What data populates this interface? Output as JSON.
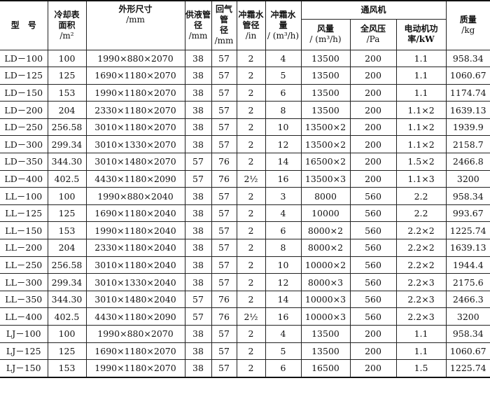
{
  "header": {
    "model": "型　号",
    "area": [
      "冷却表",
      "面积",
      "/m²"
    ],
    "dims": [
      "外形尺寸",
      "/mm"
    ],
    "supply": [
      "供液管",
      "径",
      "/mm"
    ],
    "return": [
      "回气管",
      "径",
      "/mm"
    ],
    "defrost_pipe": [
      "冲霜水",
      "管径",
      "/in"
    ],
    "defrost_flow": [
      "冲霜水",
      "量",
      "/ (m³/h)"
    ],
    "fan": "通风机",
    "fan_flow": [
      "风量",
      "/ (m³/h)"
    ],
    "fan_pressure": [
      "全风压",
      "/Pa"
    ],
    "fan_power": [
      "电动机功",
      "率/kW"
    ],
    "mass": [
      "质量",
      "/kg"
    ]
  },
  "rows": [
    [
      "LD－100",
      "100",
      "1990×880×2070",
      "38",
      "57",
      "2",
      "4",
      "13500",
      "200",
      "1.1",
      "958.34"
    ],
    [
      "LD－125",
      "125",
      "1690×1180×2070",
      "38",
      "57",
      "2",
      "5",
      "13500",
      "200",
      "1.1",
      "1060.67"
    ],
    [
      "LD－150",
      "153",
      "1990×1180×2070",
      "38",
      "57",
      "2",
      "6",
      "13500",
      "200",
      "1.1",
      "1174.74"
    ],
    [
      "LD－200",
      "204",
      "2330×1180×2070",
      "38",
      "57",
      "2",
      "8",
      "13500",
      "200",
      "1.1×2",
      "1639.13"
    ],
    [
      "LD－250",
      "256.58",
      "3010×1180×2070",
      "38",
      "57",
      "2",
      "10",
      "13500×2",
      "200",
      "1.1×2",
      "1939.9"
    ],
    [
      "LD－300",
      "299.34",
      "3010×1330×2070",
      "38",
      "57",
      "2",
      "12",
      "13500×2",
      "200",
      "1.1×2",
      "2158.7"
    ],
    [
      "LD－350",
      "344.30",
      "3010×1480×2070",
      "57",
      "76",
      "2",
      "14",
      "16500×2",
      "200",
      "1.5×2",
      "2466.8"
    ],
    [
      "LD－400",
      "402.5",
      "4430×1180×2090",
      "57",
      "76",
      "2½",
      "16",
      "13500×3",
      "200",
      "1.1×3",
      "3200"
    ],
    [
      "LL－100",
      "100",
      "1990×880×2040",
      "38",
      "57",
      "2",
      "3",
      "8000",
      "560",
      "2.2",
      "958.34"
    ],
    [
      "LL－125",
      "125",
      "1690×1180×2040",
      "38",
      "57",
      "2",
      "4",
      "10000",
      "560",
      "2.2",
      "993.67"
    ],
    [
      "LL－150",
      "153",
      "1990×1180×2040",
      "38",
      "57",
      "2",
      "6",
      "8000×2",
      "560",
      "2.2×2",
      "1225.74"
    ],
    [
      "LL－200",
      "204",
      "2330×1180×2040",
      "38",
      "57",
      "2",
      "8",
      "8000×2",
      "560",
      "2.2×2",
      "1639.13"
    ],
    [
      "LL－250",
      "256.58",
      "3010×1180×2040",
      "38",
      "57",
      "2",
      "10",
      "10000×2",
      "560",
      "2.2×2",
      "1944.4"
    ],
    [
      "LL－300",
      "299.34",
      "3010×1330×2040",
      "38",
      "57",
      "2",
      "12",
      "8000×3",
      "560",
      "2.2×3",
      "2175.6"
    ],
    [
      "LL－350",
      "344.30",
      "3010×1480×2040",
      "57",
      "76",
      "2",
      "14",
      "10000×3",
      "560",
      "2.2×3",
      "2466.3"
    ],
    [
      "LL－400",
      "402.5",
      "4430×1180×2090",
      "57",
      "76",
      "2½",
      "16",
      "10000×3",
      "560",
      "2.2×3",
      "3200"
    ],
    [
      "LJ－100",
      "100",
      "1990×880×2070",
      "38",
      "57",
      "2",
      "4",
      "13500",
      "200",
      "1.1",
      "958.34"
    ],
    [
      "LJ－125",
      "125",
      "1690×1180×2070",
      "38",
      "57",
      "2",
      "5",
      "13500",
      "200",
      "1.1",
      "1060.67"
    ],
    [
      "LJ－150",
      "153",
      "1990×1180×2070",
      "38",
      "57",
      "2",
      "6",
      "16500",
      "200",
      "1.5",
      "1225.74"
    ]
  ]
}
